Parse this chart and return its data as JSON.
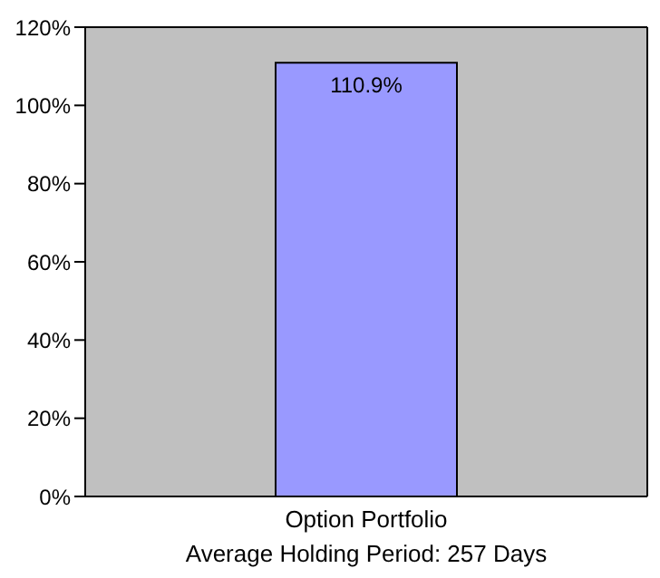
{
  "chart_data": {
    "type": "bar",
    "categories": [
      "Option Portfolio"
    ],
    "xlabel": "Average Holding Period: 257 Days",
    "values": [
      110.9
    ],
    "color": "#9999ff",
    "value_labels": [
      "110.9%"
    ],
    "ylim": [
      0,
      120
    ],
    "yticks": [
      {
        "value": 0,
        "label": "0%"
      },
      {
        "value": 20,
        "label": "20%"
      },
      {
        "value": 40,
        "label": "40%"
      },
      {
        "value": 60,
        "label": "60%"
      },
      {
        "value": 80,
        "label": "80%"
      },
      {
        "value": 100,
        "label": "100%"
      },
      {
        "value": 120,
        "label": "120%"
      }
    ],
    "grid": false
  }
}
